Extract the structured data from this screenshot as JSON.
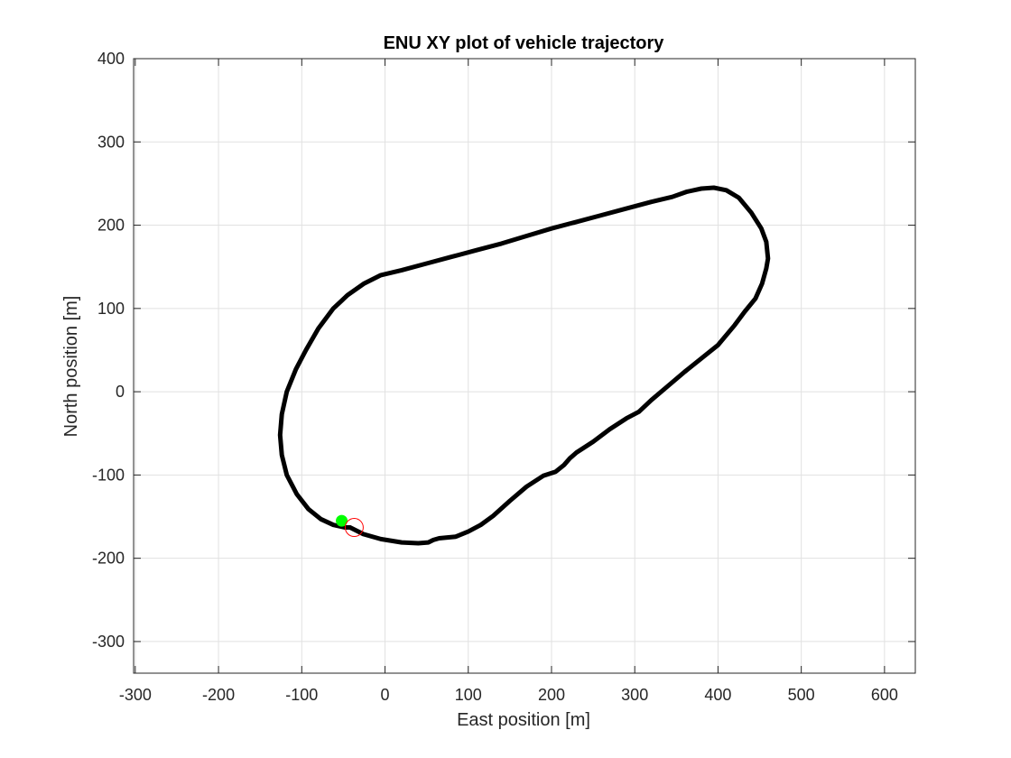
{
  "chart_data": {
    "type": "line",
    "title": "ENU XY plot of vehicle trajectory",
    "xlabel": "East position [m]",
    "ylabel": "North position [m]",
    "xlim": [
      -302,
      637
    ],
    "ylim": [
      -338,
      400
    ],
    "xticks": [
      -300,
      -200,
      -100,
      0,
      100,
      200,
      300,
      400,
      500,
      600
    ],
    "yticks": [
      -300,
      -200,
      -100,
      0,
      100,
      200,
      300,
      400
    ],
    "grid": true,
    "series": [
      {
        "marker": "none",
        "color": "#000000",
        "x": [
          -42,
          -26,
          -5,
          20,
          40,
          52,
          58,
          65,
          75,
          85,
          100,
          115,
          130,
          150,
          170,
          190,
          205,
          215,
          222,
          230,
          250,
          270,
          290,
          305,
          320,
          340,
          360,
          380,
          400,
          420,
          432,
          445,
          453,
          458,
          460,
          458,
          452,
          440,
          425,
          410,
          395,
          380,
          362,
          345,
          320,
          290,
          260,
          230,
          200,
          170,
          140,
          110,
          80,
          50,
          20,
          -5,
          -25,
          -45,
          -62,
          -80,
          -95,
          -107,
          -118,
          -124,
          -126,
          -124,
          -118,
          -106,
          -92,
          -77,
          -62,
          -48,
          -42
        ],
        "y": [
          -163,
          -171,
          -177,
          -181,
          -182,
          -181,
          -178,
          -176,
          -175,
          -174,
          -168,
          -160,
          -149,
          -131,
          -114,
          -101,
          -96,
          -88,
          -80,
          -73,
          -60,
          -45,
          -32,
          -24,
          -10,
          7,
          24,
          40,
          56,
          80,
          96,
          112,
          130,
          148,
          160,
          180,
          196,
          215,
          233,
          242,
          245,
          244,
          240,
          234,
          228,
          220,
          212,
          204,
          196,
          187,
          178,
          170,
          162,
          154,
          146,
          140,
          130,
          116,
          100,
          76,
          50,
          27,
          0,
          -27,
          -52,
          -76,
          -100,
          -123,
          -141,
          -153,
          -160,
          -163,
          -163
        ]
      },
      {
        "marker": "filled-circle",
        "color": "#00ff00",
        "x": [
          -52
        ],
        "y": [
          -155
        ]
      },
      {
        "marker": "open-circle",
        "color": "#ff0000",
        "x": [
          -37
        ],
        "y": [
          -163
        ]
      }
    ]
  }
}
